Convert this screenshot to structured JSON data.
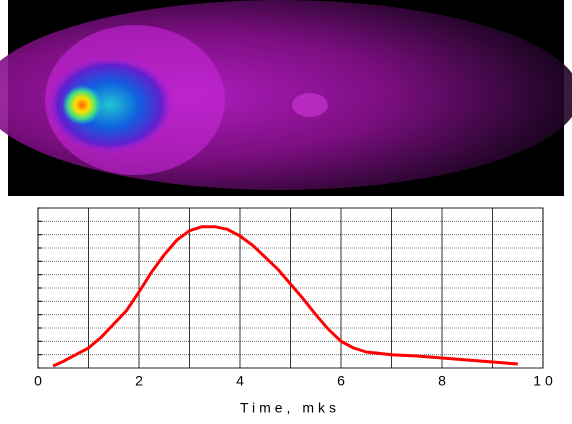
{
  "chart_data": {
    "type": "line",
    "x_label": "Time, mks",
    "xlim": [
      0,
      10
    ],
    "xticks": [
      0,
      2,
      4,
      6,
      8,
      10
    ],
    "xminor": [
      1,
      3,
      5,
      7,
      9
    ],
    "ylim": [
      0,
      12
    ],
    "yticks": [
      0,
      1,
      2,
      3,
      4,
      5,
      6,
      7,
      8,
      9,
      10,
      11,
      12
    ],
    "grid": true,
    "series": [
      {
        "color": "#ff0000",
        "x": [
          0.3,
          0.5,
          0.8,
          1.0,
          1.25,
          1.5,
          1.75,
          2.0,
          2.25,
          2.5,
          2.75,
          3.0,
          3.25,
          3.5,
          3.75,
          4.0,
          4.25,
          4.5,
          4.75,
          5.0,
          5.25,
          5.5,
          5.75,
          6.0,
          6.25,
          6.5,
          7.0,
          7.5,
          8.0,
          8.5,
          9.0,
          9.5
        ],
        "values": [
          0.15,
          0.5,
          1.1,
          1.5,
          2.3,
          3.3,
          4.3,
          5.7,
          7.2,
          8.5,
          9.6,
          10.3,
          10.6,
          10.6,
          10.4,
          9.9,
          9.2,
          8.3,
          7.4,
          6.3,
          5.2,
          4.0,
          2.9,
          2.0,
          1.5,
          1.2,
          1.0,
          0.9,
          0.75,
          0.6,
          0.45,
          0.3
        ]
      }
    ]
  }
}
